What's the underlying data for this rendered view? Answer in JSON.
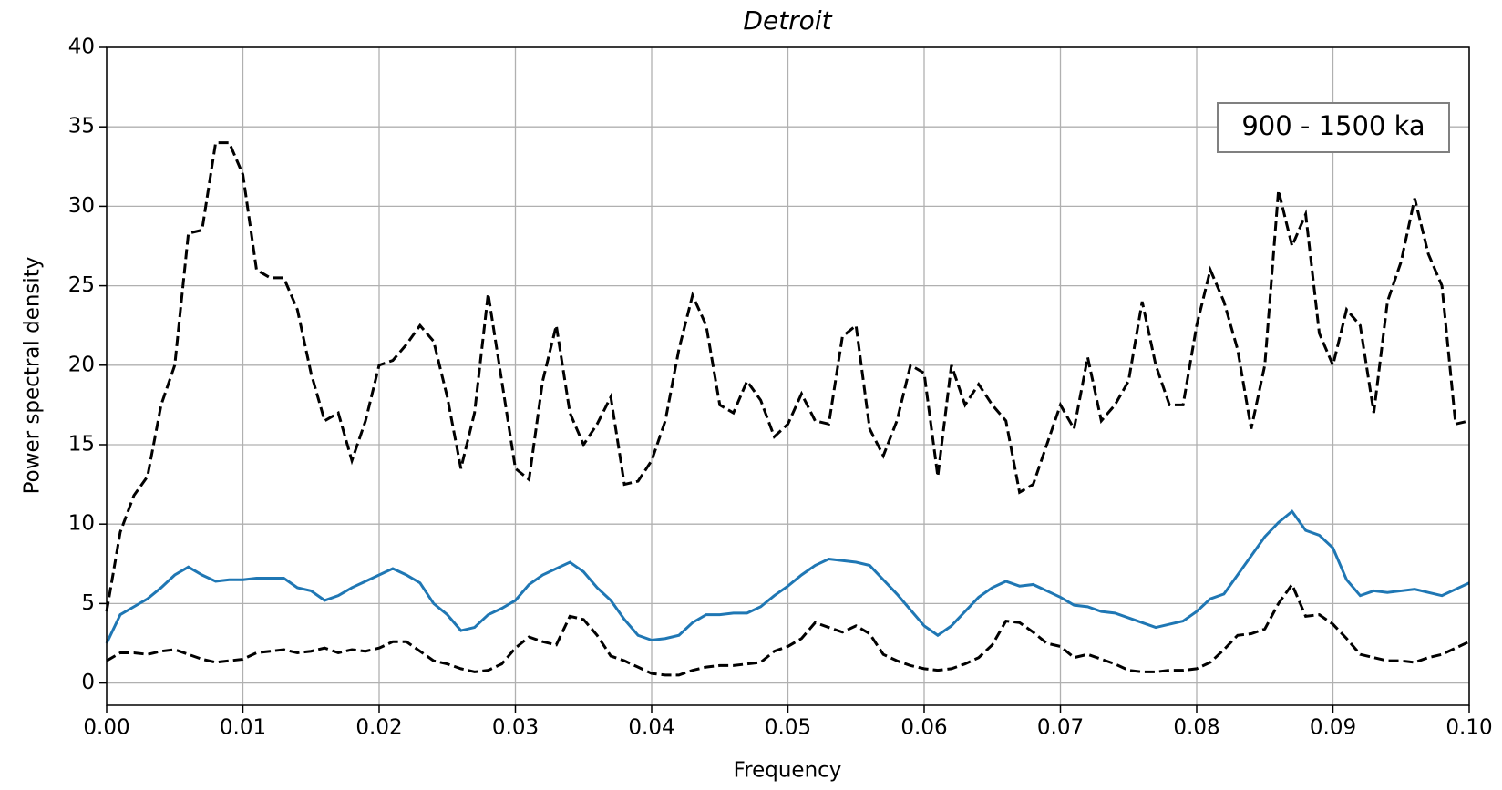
{
  "chart_data": {
    "type": "line",
    "title": "Detroit",
    "xlabel": "Frequency",
    "ylabel": "Power spectral density",
    "annotation": "900 - 1500 ka",
    "x": [
      0,
      0.001,
      0.002,
      0.003,
      0.004,
      0.005,
      0.006,
      0.007,
      0.008,
      0.009,
      0.01,
      0.011,
      0.012,
      0.013,
      0.014,
      0.015,
      0.016,
      0.017,
      0.018,
      0.019,
      0.02,
      0.021,
      0.022,
      0.023,
      0.024,
      0.025,
      0.026,
      0.027,
      0.028,
      0.029,
      0.03,
      0.031,
      0.032,
      0.033,
      0.034,
      0.035,
      0.036,
      0.037,
      0.038,
      0.039,
      0.04,
      0.041,
      0.042,
      0.043,
      0.044,
      0.045,
      0.046,
      0.047,
      0.048,
      0.049,
      0.05,
      0.051,
      0.052,
      0.053,
      0.054,
      0.055,
      0.056,
      0.057,
      0.058,
      0.059,
      0.06,
      0.061,
      0.062,
      0.063,
      0.064,
      0.065,
      0.066,
      0.067,
      0.068,
      0.069,
      0.07,
      0.071,
      0.072,
      0.073,
      0.074,
      0.075,
      0.076,
      0.077,
      0.078,
      0.079,
      0.08,
      0.081,
      0.082,
      0.083,
      0.084,
      0.085,
      0.086,
      0.087,
      0.088,
      0.089,
      0.09,
      0.091,
      0.092,
      0.093,
      0.094,
      0.095,
      0.096,
      0.097,
      0.098,
      0.099,
      0.1
    ],
    "series": [
      {
        "color": "#000000",
        "linestyle": "dashed",
        "values": [
          4.5,
          9.5,
          11.8,
          13,
          17.5,
          20,
          28.3,
          28.5,
          34,
          34,
          32,
          26,
          25.5,
          25.5,
          23.5,
          19.5,
          16.5,
          17,
          14,
          16.5,
          20,
          20.3,
          21.3,
          22.5,
          21.5,
          18,
          13.5,
          17,
          24.5,
          19,
          13.5,
          12.8,
          19,
          22.5,
          17,
          15,
          16.3,
          18,
          12.5,
          12.7,
          14,
          16.5,
          21,
          24.4,
          22.5,
          17.5,
          17,
          19,
          17.8,
          15.5,
          16.3,
          18.2,
          16.5,
          16.3,
          21.8,
          22.5,
          16,
          14.3,
          16.5,
          20,
          19.5,
          13,
          20,
          17.5,
          18.8,
          17.5,
          16.5,
          12,
          12.5,
          15,
          17.5,
          16,
          20.5,
          16.5,
          17.5,
          19,
          24,
          20,
          17.5,
          17.5,
          22.5,
          26,
          24,
          21,
          16,
          20,
          31,
          27.5,
          29.5,
          22,
          20,
          23.5,
          22.5,
          17,
          24,
          26.5,
          30.5,
          27,
          25,
          16.3,
          16.5
        ]
      },
      {
        "color": "#1f77b4",
        "linestyle": "solid",
        "values": [
          2.5,
          4.3,
          4.8,
          5.3,
          6.0,
          6.8,
          7.3,
          6.8,
          6.4,
          6.5,
          6.5,
          6.6,
          6.6,
          6.6,
          6.0,
          5.8,
          5.2,
          5.5,
          6.0,
          6.4,
          6.8,
          7.2,
          6.8,
          6.3,
          5.0,
          4.3,
          3.3,
          3.5,
          4.3,
          4.7,
          5.2,
          6.2,
          6.8,
          7.2,
          7.6,
          7.0,
          6.0,
          5.2,
          4.0,
          3.0,
          2.7,
          2.8,
          3.0,
          3.8,
          4.3,
          4.3,
          4.4,
          4.4,
          4.8,
          5.5,
          6.1,
          6.8,
          7.4,
          7.8,
          7.7,
          7.6,
          7.4,
          6.5,
          5.6,
          4.6,
          3.6,
          3.0,
          3.6,
          4.5,
          5.4,
          6.0,
          6.4,
          6.1,
          6.2,
          5.8,
          5.4,
          4.9,
          4.8,
          4.5,
          4.4,
          4.1,
          3.8,
          3.5,
          3.7,
          3.9,
          4.5,
          5.3,
          5.6,
          6.8,
          8.0,
          9.2,
          10.1,
          10.8,
          9.6,
          9.3,
          8.5,
          6.5,
          5.5,
          5.8,
          5.7,
          5.8,
          5.9,
          5.7,
          5.5,
          5.9,
          6.3
        ]
      },
      {
        "color": "#000000",
        "linestyle": "dashed",
        "values": [
          1.4,
          1.9,
          1.9,
          1.8,
          2.0,
          2.1,
          1.8,
          1.5,
          1.3,
          1.4,
          1.5,
          1.9,
          2.0,
          2.1,
          1.9,
          2.0,
          2.2,
          1.9,
          2.1,
          2.0,
          2.2,
          2.6,
          2.6,
          2.0,
          1.4,
          1.2,
          0.9,
          0.7,
          0.8,
          1.2,
          2.2,
          2.9,
          2.6,
          2.4,
          4.2,
          4.0,
          3.0,
          1.7,
          1.4,
          1.0,
          0.6,
          0.5,
          0.5,
          0.8,
          1.0,
          1.1,
          1.1,
          1.2,
          1.3,
          2.0,
          2.3,
          2.8,
          3.8,
          3.5,
          3.2,
          3.6,
          3.1,
          1.8,
          1.4,
          1.1,
          0.9,
          0.8,
          0.9,
          1.2,
          1.6,
          2.4,
          3.9,
          3.8,
          3.2,
          2.5,
          2.3,
          1.6,
          1.8,
          1.5,
          1.2,
          0.8,
          0.7,
          0.7,
          0.8,
          0.8,
          0.9,
          1.3,
          2.1,
          3.0,
          3.1,
          3.4,
          5.0,
          6.2,
          4.2,
          4.3,
          3.7,
          2.8,
          1.8,
          1.6,
          1.4,
          1.4,
          1.3,
          1.6,
          1.8,
          2.2,
          2.6
        ]
      }
    ],
    "xlim": [
      0,
      0.1
    ],
    "ylim": [
      -1.4,
      40
    ],
    "xticks": [
      {
        "value": 0,
        "label": "0.00"
      },
      {
        "value": 0.01,
        "label": "0.01"
      },
      {
        "value": 0.02,
        "label": "0.02"
      },
      {
        "value": 0.03,
        "label": "0.03"
      },
      {
        "value": 0.04,
        "label": "0.04"
      },
      {
        "value": 0.05,
        "label": "0.05"
      },
      {
        "value": 0.06,
        "label": "0.06"
      },
      {
        "value": 0.07,
        "label": "0.07"
      },
      {
        "value": 0.08,
        "label": "0.08"
      },
      {
        "value": 0.09,
        "label": "0.09"
      },
      {
        "value": 0.1,
        "label": "0.10"
      }
    ],
    "yticks": [
      0,
      5,
      10,
      15,
      20,
      25,
      30,
      35,
      40
    ],
    "grid": true
  }
}
